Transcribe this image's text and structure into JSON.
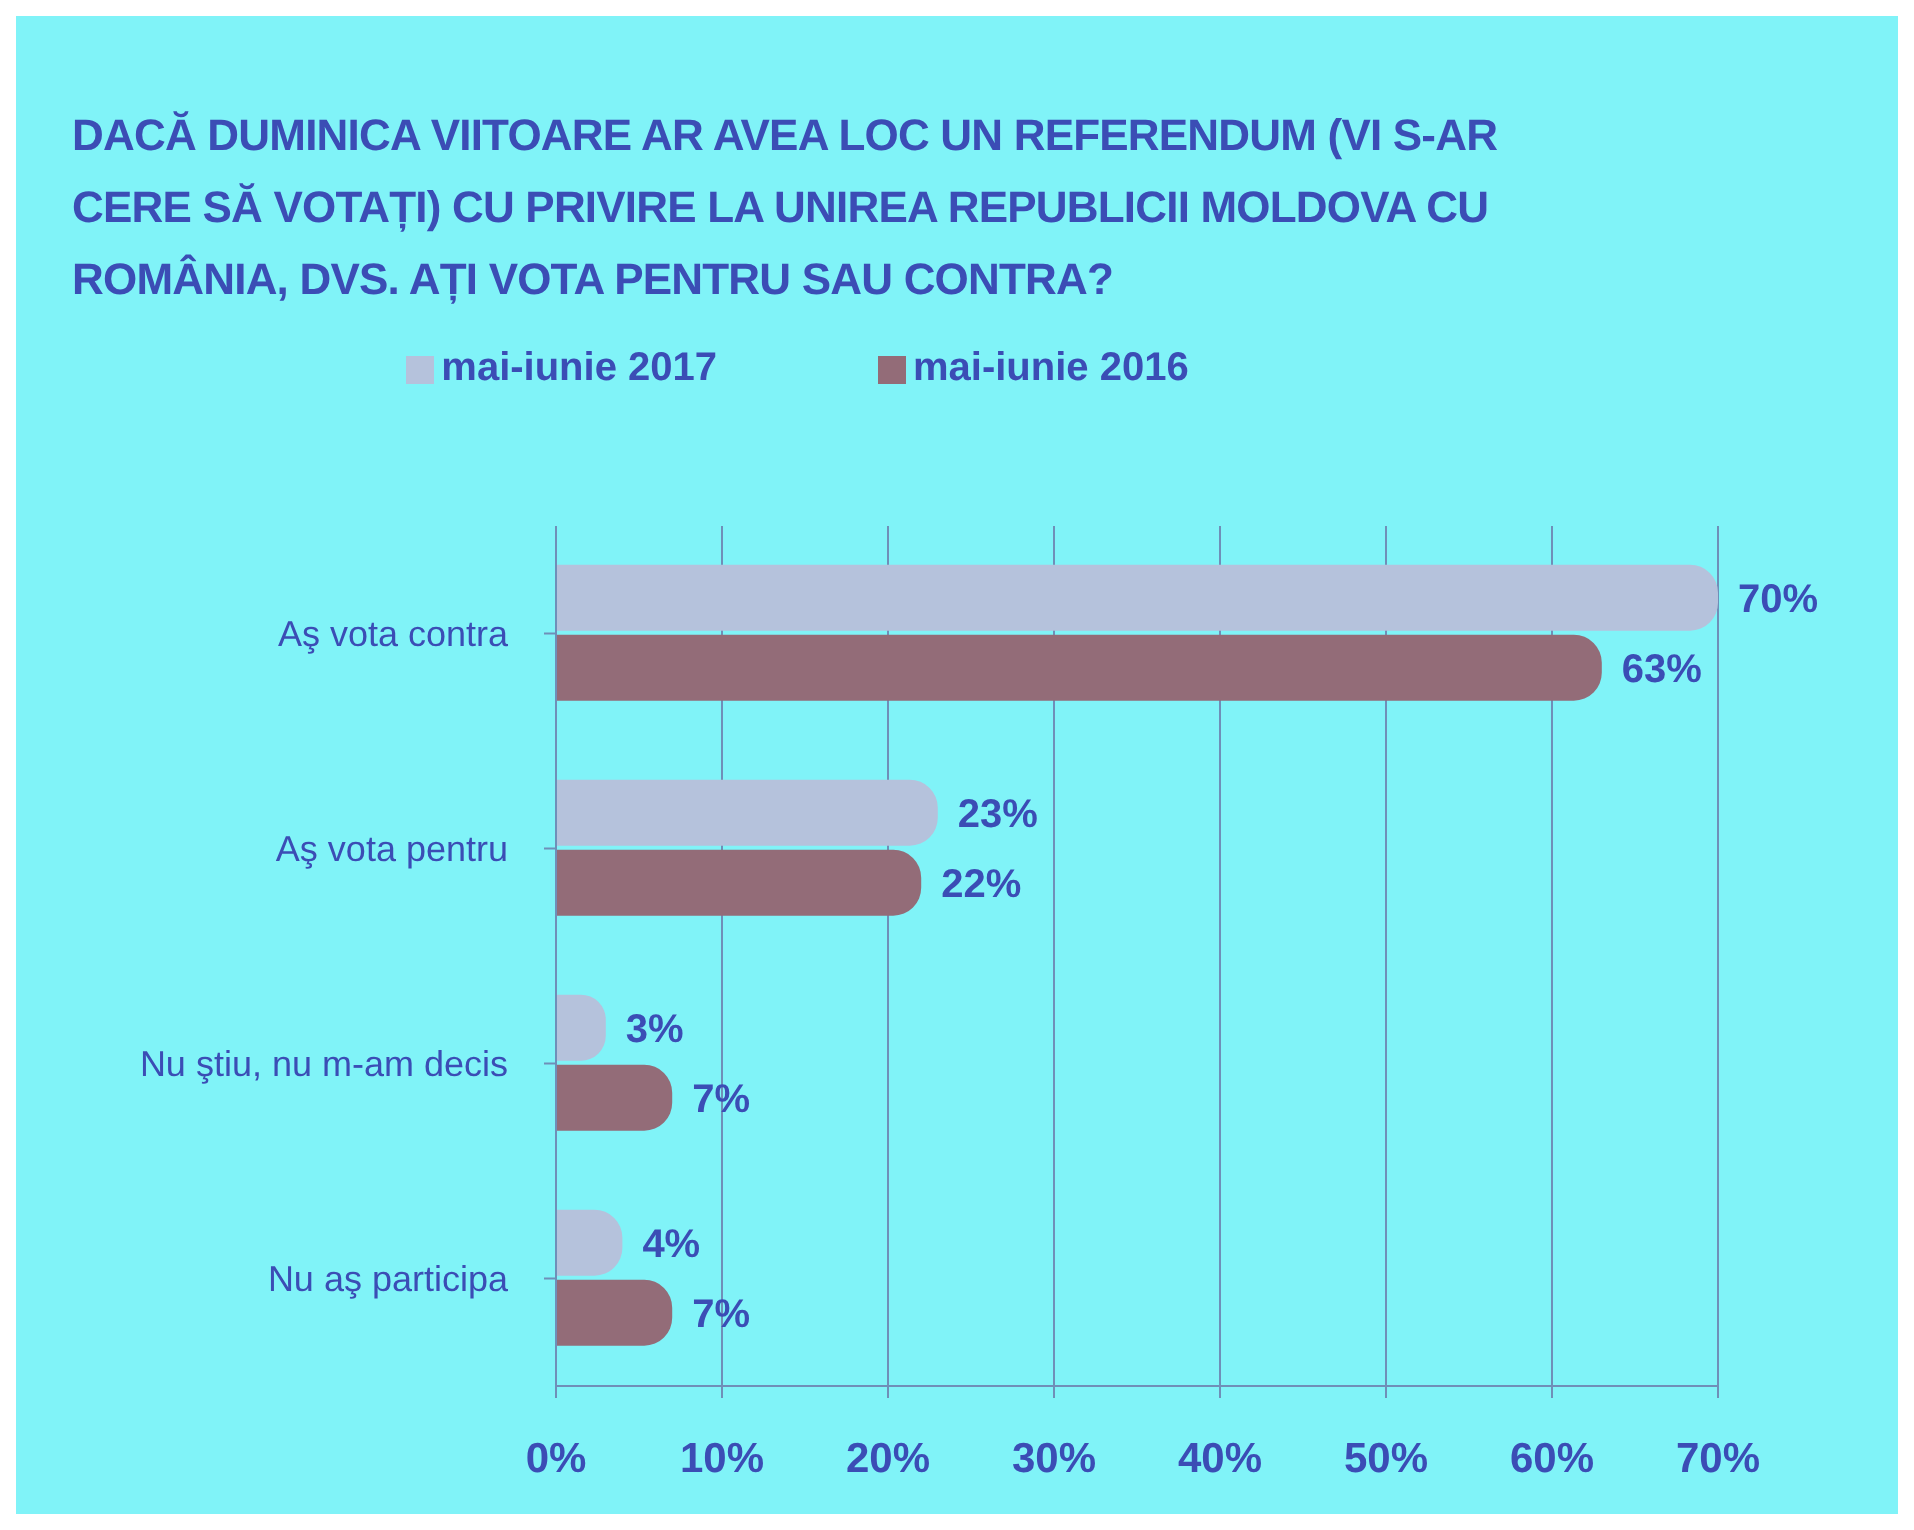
{
  "chart_data": {
    "type": "bar",
    "orientation": "horizontal",
    "title": "DACĂ DUMINICA VIITOARE AR AVEA LOC UN REFERENDUM (VI S-AR\nCERE SĂ VOTAȚI) CU PRIVIRE LA UNIREA REPUBLICII MOLDOVA CU\nROMÂNIA, DVS. AȚI VOTA PENTRU SAU CONTRA?",
    "categories": [
      "Aş vota contra",
      "Aş vota pentru",
      "Nu ştiu, nu m-am decis",
      "Nu aş participa"
    ],
    "series": [
      {
        "name": "mai-iunie 2017",
        "color": "#b5c2dc",
        "values": [
          70,
          23,
          3,
          4
        ],
        "value_labels": [
          "70%",
          "23%",
          "3%",
          "4%"
        ]
      },
      {
        "name": "mai-iunie 2016",
        "color": "#936c78",
        "values": [
          63,
          22,
          7,
          7
        ],
        "value_labels": [
          "63%",
          "22%",
          "7%",
          "7%"
        ]
      }
    ],
    "xlim": [
      0,
      70
    ],
    "xticks": [
      {
        "value": 0,
        "label": "0%"
      },
      {
        "value": 10,
        "label": "10%"
      },
      {
        "value": 20,
        "label": "20%"
      },
      {
        "value": 30,
        "label": "30%"
      },
      {
        "value": 40,
        "label": "40%"
      },
      {
        "value": 50,
        "label": "50%"
      },
      {
        "value": 60,
        "label": "60%"
      },
      {
        "value": 70,
        "label": "70%"
      }
    ],
    "grid": "x",
    "legend": "top"
  }
}
